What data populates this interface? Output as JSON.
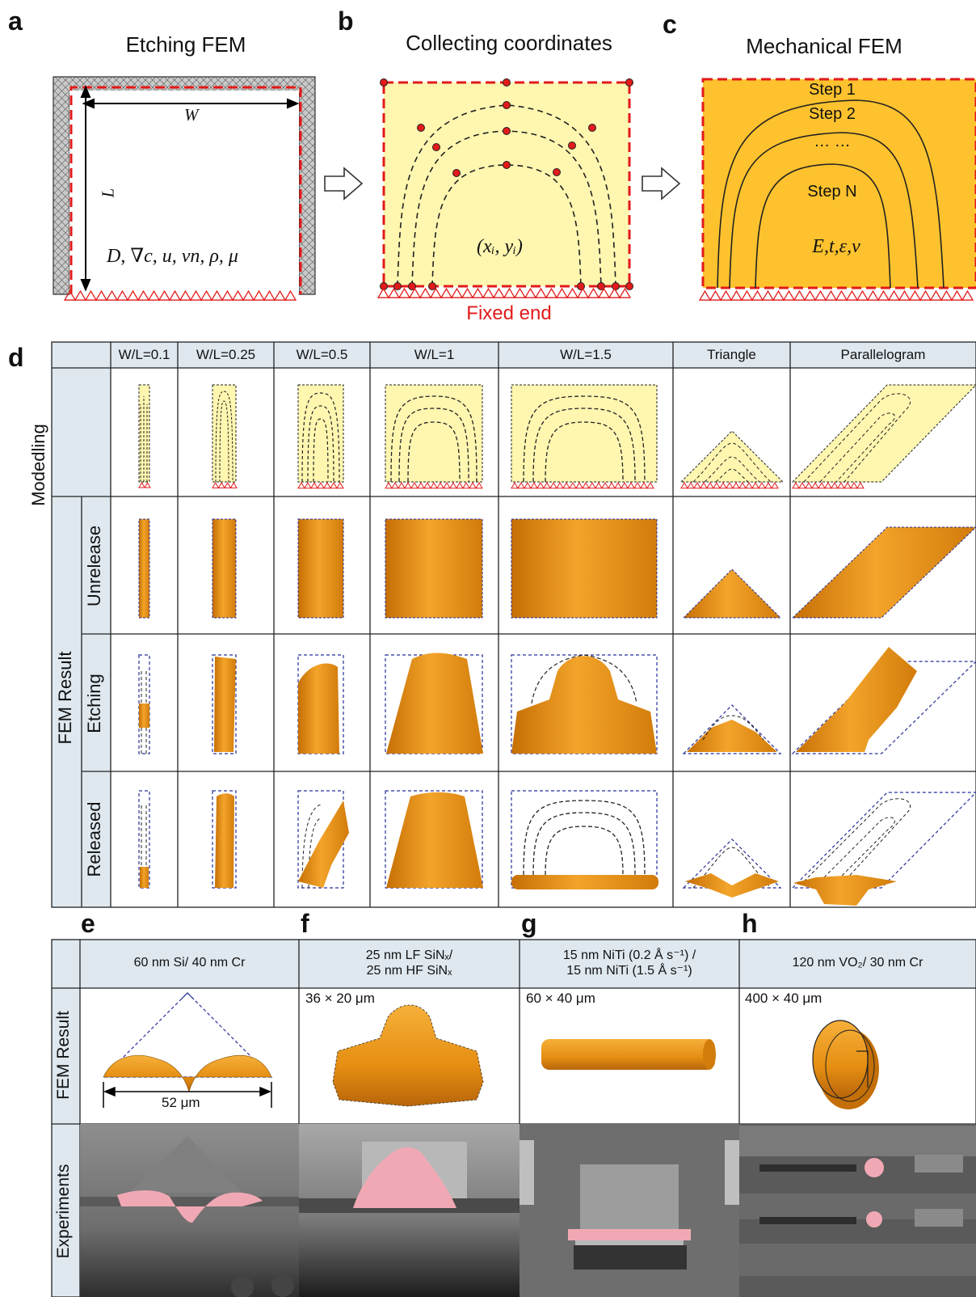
{
  "panels": {
    "a": {
      "label": "a",
      "title": "Etching FEM",
      "W": "W",
      "L": "L",
      "params": "D, ∇c, u, vn, ρ, μ"
    },
    "b": {
      "label": "b",
      "title": "Collecting coordinates",
      "coord": "(xᵢ, yᵢ)",
      "fixed_end": "Fixed end"
    },
    "c": {
      "label": "c",
      "title": "Mechanical FEM",
      "step1": "Step 1",
      "step2": "Step 2",
      "dots": "… …",
      "stepN": "Step N",
      "params": "E,t,ε,ν"
    },
    "d": {
      "label": "d",
      "columns": [
        "W/L=0.1",
        "W/L=0.25",
        "W/L=0.5",
        "W/L=1",
        "W/L=1.5",
        "Triangle",
        "Parallelogram"
      ],
      "rows": {
        "modeling": "Modedling",
        "group": "FEM Result",
        "unrelease": "Unrelease",
        "etching": "Etching",
        "released": "Released"
      }
    },
    "e": {
      "label": "e",
      "material": "60 nm Si/ 40 nm Cr",
      "dimension": "52 μm"
    },
    "f": {
      "label": "f",
      "material_line1": "25 nm LF SiNₓ/",
      "material_line2": "25 nm HF SiNₓ",
      "size": "36 × 20 μm"
    },
    "g": {
      "label": "g",
      "material_line1": "15 nm NiTi (0.2 Å s⁻¹) /",
      "material_line2": "15 nm NiTi (1.5 Å s⁻¹)",
      "size": "60 × 40 μm"
    },
    "h": {
      "label": "h",
      "material": "120 nm VO₂/ 30 nm Cr",
      "size": "400 × 40 μm"
    },
    "bottom_rows": {
      "fem": "FEM Result",
      "exp": "Experiments"
    }
  },
  "colors": {
    "orange": "#e58e12",
    "yellow_fill": "#fff6b0",
    "mech_fill": "#fec22e",
    "red_dash": "#e21a1a",
    "header_bg": "#dfe8ef",
    "blue_dash": "#26309a",
    "pink": "#f0a9b4"
  }
}
